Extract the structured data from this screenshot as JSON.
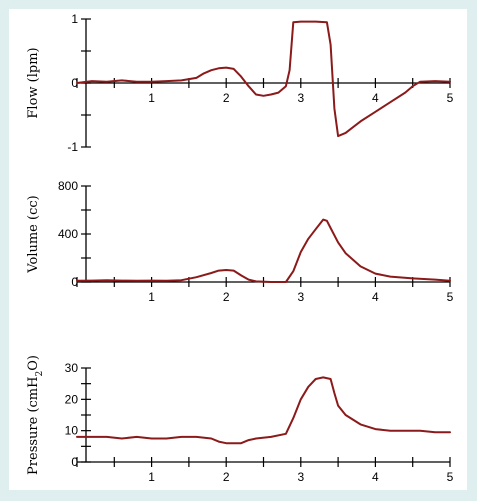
{
  "chart_data": [
    {
      "type": "line",
      "ylabel": "Flow (lpm)",
      "xlim": [
        0,
        5
      ],
      "ylim": [
        -1,
        1
      ],
      "xticks": [
        0,
        0.5,
        1,
        1.5,
        2,
        2.5,
        3,
        3.5,
        4,
        4.5,
        5
      ],
      "xtick_labels": [
        "",
        "",
        "1",
        "",
        "2",
        "",
        "3",
        "",
        "4",
        "",
        "5"
      ],
      "yticks": [
        -1,
        -0.5,
        0,
        0.5,
        1
      ],
      "ytick_labels": [
        "-1",
        "",
        "0",
        "",
        "1"
      ],
      "grid": false,
      "color": "#8b1a1a",
      "series": [
        {
          "x": [
            0,
            0.2,
            0.4,
            0.6,
            0.8,
            1.0,
            1.2,
            1.4,
            1.6,
            1.7,
            1.8,
            1.9,
            2.0,
            2.1,
            2.2,
            2.3,
            2.4,
            2.5,
            2.6,
            2.7,
            2.8,
            2.85,
            2.9,
            3.0,
            3.2,
            3.35,
            3.4,
            3.45,
            3.5,
            3.6,
            3.8,
            4.0,
            4.2,
            4.4,
            4.5,
            4.6,
            4.8,
            5.0
          ],
          "y": [
            0.0,
            0.03,
            0.02,
            0.04,
            0.02,
            0.02,
            0.03,
            0.04,
            0.08,
            0.15,
            0.2,
            0.23,
            0.24,
            0.22,
            0.1,
            -0.05,
            -0.18,
            -0.2,
            -0.18,
            -0.15,
            -0.05,
            0.2,
            0.95,
            0.96,
            0.96,
            0.95,
            0.6,
            -0.4,
            -0.83,
            -0.78,
            -0.6,
            -0.45,
            -0.3,
            -0.15,
            -0.05,
            0.02,
            0.03,
            0.02
          ]
        }
      ]
    },
    {
      "type": "line",
      "ylabel": "Volume (cc)",
      "xlim": [
        0,
        5
      ],
      "ylim": [
        0,
        800
      ],
      "xticks": [
        0,
        0.5,
        1,
        1.5,
        2,
        2.5,
        3,
        3.5,
        4,
        4.5,
        5
      ],
      "xtick_labels": [
        "",
        "",
        "1",
        "",
        "2",
        "",
        "3",
        "",
        "4",
        "",
        "5"
      ],
      "yticks": [
        0,
        200,
        400,
        600,
        800
      ],
      "ytick_labels": [
        "0",
        "",
        "400",
        "",
        "800"
      ],
      "grid": false,
      "color": "#8b1a1a",
      "series": [
        {
          "x": [
            0,
            0.2,
            0.4,
            0.6,
            0.8,
            1.0,
            1.2,
            1.4,
            1.6,
            1.8,
            1.9,
            2.0,
            2.1,
            2.2,
            2.3,
            2.4,
            2.6,
            2.8,
            2.9,
            3.0,
            3.1,
            3.2,
            3.3,
            3.35,
            3.4,
            3.5,
            3.6,
            3.8,
            4.0,
            4.2,
            4.5,
            4.8,
            5.0
          ],
          "y": [
            10,
            12,
            15,
            12,
            10,
            12,
            10,
            15,
            40,
            75,
            95,
            100,
            95,
            55,
            20,
            5,
            0,
            0,
            90,
            250,
            360,
            440,
            520,
            510,
            450,
            330,
            240,
            130,
            70,
            45,
            30,
            20,
            10
          ]
        }
      ]
    },
    {
      "type": "line",
      "ylabel": "Pressure (cmH2O)",
      "xlim": [
        0,
        5
      ],
      "ylim": [
        0,
        30
      ],
      "xticks": [
        0,
        0.5,
        1,
        1.5,
        2,
        2.5,
        3,
        3.5,
        4,
        4.5,
        5
      ],
      "xtick_labels": [
        "",
        "",
        "1",
        "",
        "2",
        "",
        "3",
        "",
        "4",
        "",
        "5"
      ],
      "yticks": [
        0,
        5,
        10,
        15,
        20,
        25,
        30
      ],
      "ytick_labels": [
        "0",
        "",
        "10",
        "",
        "20",
        "",
        "30"
      ],
      "grid": false,
      "color": "#8b1a1a",
      "series": [
        {
          "x": [
            0,
            0.2,
            0.4,
            0.6,
            0.8,
            1.0,
            1.2,
            1.4,
            1.6,
            1.8,
            1.9,
            2.0,
            2.2,
            2.3,
            2.4,
            2.6,
            2.8,
            2.9,
            3.0,
            3.1,
            3.2,
            3.3,
            3.4,
            3.45,
            3.5,
            3.6,
            3.8,
            4.0,
            4.2,
            4.4,
            4.6,
            4.8,
            5.0
          ],
          "y": [
            8,
            8,
            8,
            7.5,
            8,
            7.5,
            7.5,
            8,
            8,
            7.5,
            6.5,
            6,
            6,
            7,
            7.5,
            8,
            9,
            14,
            20,
            24,
            26.5,
            27,
            26.5,
            22,
            18,
            15,
            12,
            10.5,
            10,
            10,
            10,
            9.5,
            9.5
          ]
        }
      ]
    }
  ]
}
